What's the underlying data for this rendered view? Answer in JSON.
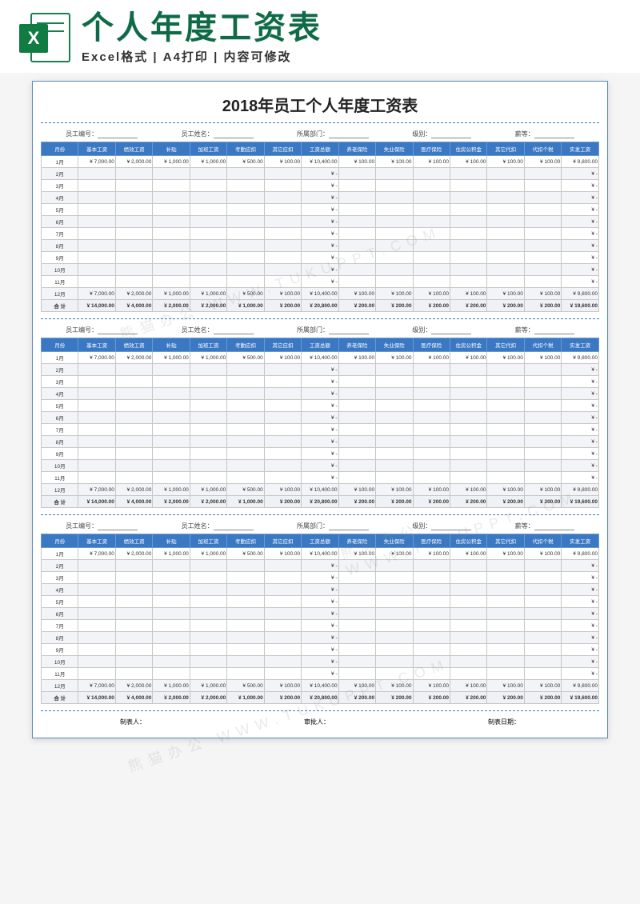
{
  "header": {
    "excel_x": "X",
    "main_title": "个人年度工资表",
    "sub_title": "Excel格式 | A4打印 | 内容可修改"
  },
  "document": {
    "title": "2018年员工个人年度工资表",
    "columns": [
      "月份",
      "基本工资",
      "绩效工资",
      "补贴",
      "加班工资",
      "考勤应扣",
      "其它应扣",
      "工资总额",
      "养老保险",
      "失业保险",
      "医疗保险",
      "住房公积金",
      "其它代扣",
      "代扣个税",
      "实发工资"
    ],
    "meta_labels": {
      "emp_no": "员工编号：",
      "emp_name": "员工姓名：",
      "dept": "所属部门：",
      "rank": "级别：",
      "class": "薪等："
    },
    "month_labels": [
      "1月",
      "2月",
      "3月",
      "4月",
      "5月",
      "6月",
      "7月",
      "8月",
      "9月",
      "10月",
      "11月",
      "12月",
      "合 计"
    ],
    "row_month1": [
      "¥ 7,000.00",
      "¥ 2,000.00",
      "¥ 1,000.00",
      "¥ 1,000.00",
      "¥ 500.00",
      "¥ 100.00",
      "¥ 10,400.00",
      "¥ 100.00",
      "¥ 100.00",
      "¥ 100.00",
      "¥ 100.00",
      "¥ 100.00",
      "¥ 100.00",
      "¥ 9,800.00"
    ],
    "row_empty_gross": "¥   -",
    "row_month12": [
      "¥ 7,000.00",
      "¥ 2,000.00",
      "¥ 1,000.00",
      "¥ 1,000.00",
      "¥ 500.00",
      "¥ 100.00",
      "¥ 10,400.00",
      "¥ 100.00",
      "¥ 100.00",
      "¥ 100.00",
      "¥ 100.00",
      "¥ 100.00",
      "¥ 100.00",
      "¥ 9,800.00"
    ],
    "row_total": [
      "¥ 14,000.00",
      "¥ 4,000.00",
      "¥ 2,000.00",
      "¥ 2,000.00",
      "¥ 1,000.00",
      "¥ 200.00",
      "¥ 20,800.00",
      "¥ 200.00",
      "¥ 200.00",
      "¥ 200.00",
      "¥ 200.00",
      "¥ 200.00",
      "¥ 200.00",
      "¥ 19,600.00"
    ],
    "footer": {
      "made_by": "制表人：",
      "approved_by": "审批人：",
      "date": "制表日期："
    }
  },
  "style": {
    "header_bg": "#3a78c4",
    "header_text": "#ffffff",
    "border": "#c6c6c6",
    "stripe": "#f2f4f7",
    "accent": "#107c41",
    "title_color": "#0f6b47",
    "divider": "#3a78c4"
  },
  "watermarks": [
    "熊猫办公 WWW.TUKUPPT.COM",
    "熊猫办公 WWW.TUKUPPT.COM",
    "熊猫办公 WWW.TUKUPPT.COM"
  ]
}
